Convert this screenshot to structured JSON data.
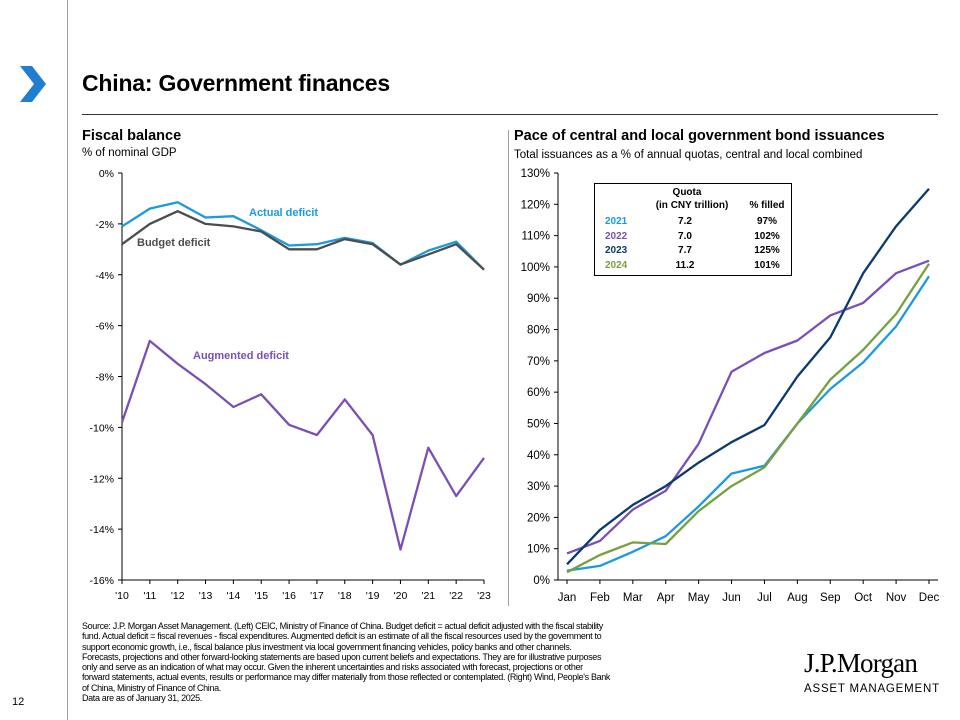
{
  "page": {
    "title": "China: Government finances",
    "page_number": "12",
    "source_lines": [
      "Source: J.P. Morgan Asset Management. (Left) CEIC, Ministry of Finance of China. Budget deficit = actual deficit adjusted with the fiscal stability",
      "fund. Actual deficit = fiscal revenues - fiscal expenditures. Augmented deficit is an estimate of all the fiscal resources used by the government to",
      "support economic growth, i.e., fiscal balance plus investment via local government financing vehicles, policy banks and other channels.",
      "Forecasts, projections and other forward-looking statements are based upon current beliefs and expectations. They are for illustrative purposes",
      "only and serve as an indication of what may occur. Given the inherent uncertainties and risks associated with forecast, projections or other",
      "forward statements, actual events, results or performance may differ materially from those reflected or contemplated. (Right) Wind, People's Bank",
      "of China, Ministry of Finance of China.",
      "Data are as of January 31, 2025."
    ],
    "logo": {
      "main": "J.P.Morgan",
      "sub": "ASSET MANAGEMENT"
    },
    "colors": {
      "accent": "#1f7ecf"
    }
  },
  "chart_data": [
    {
      "type": "line",
      "title": "Fiscal balance",
      "subtitle": "% of nominal GDP",
      "categories": [
        "'10",
        "'11",
        "'12",
        "'13",
        "'14",
        "'15",
        "'16",
        "'17",
        "'18",
        "'19",
        "'20",
        "'21",
        "'22",
        "'23"
      ],
      "ylim": [
        -16,
        0
      ],
      "yticks": [
        0,
        -2,
        -4,
        -6,
        -8,
        -10,
        -12,
        -14,
        -16
      ],
      "ytick_labels": [
        "0%",
        "-2%",
        "-4%",
        "-6%",
        "-8%",
        "-10%",
        "-12%",
        "-14%",
        "-16%"
      ],
      "series": [
        {
          "name": "Actual deficit",
          "color": "#1b9ae0",
          "values": [
            -2.1,
            -1.4,
            -1.15,
            -1.75,
            -1.7,
            -2.25,
            -2.85,
            -2.8,
            -2.55,
            -2.75,
            -3.6,
            -3.05,
            -2.7,
            -3.8
          ]
        },
        {
          "name": "Budget deficit",
          "color": "#4d4d4d",
          "values": [
            -2.8,
            -2.0,
            -1.5,
            -2.0,
            -2.1,
            -2.3,
            -3.0,
            -3.0,
            -2.6,
            -2.8,
            -3.6,
            -3.2,
            -2.8,
            -3.8
          ]
        },
        {
          "name": "Augmented deficit",
          "color": "#7b4fb8",
          "values": [
            -9.8,
            -6.6,
            -7.5,
            -8.3,
            -9.2,
            -8.7,
            -9.9,
            -10.3,
            -8.9,
            -10.3,
            -14.8,
            -10.8,
            -12.7,
            -11.2
          ]
        }
      ]
    },
    {
      "type": "line",
      "title": "Pace of central and local government bond issuances",
      "subtitle": "Total issuances as a % of annual quotas, central and local combined",
      "categories": [
        "Jan",
        "Feb",
        "Mar",
        "Apr",
        "May",
        "Jun",
        "Jul",
        "Aug",
        "Sep",
        "Oct",
        "Nov",
        "Dec"
      ],
      "ylim": [
        0,
        130
      ],
      "yticks": [
        0,
        10,
        20,
        30,
        40,
        50,
        60,
        70,
        80,
        90,
        100,
        110,
        120,
        130
      ],
      "ytick_labels": [
        "0%",
        "10%",
        "20%",
        "30%",
        "40%",
        "50%",
        "60%",
        "70%",
        "80%",
        "90%",
        "100%",
        "110%",
        "120%",
        "130%"
      ],
      "series": [
        {
          "name": "2021",
          "color": "#1b9ae0",
          "values": [
            3,
            4.5,
            9,
            14,
            23.5,
            34,
            36.5,
            50,
            61,
            69.5,
            81,
            97
          ]
        },
        {
          "name": "2022",
          "color": "#7b4fb8",
          "values": [
            8.5,
            12.5,
            22.5,
            28.5,
            43.5,
            66.5,
            72.5,
            76.5,
            84.5,
            88.5,
            98,
            102
          ]
        },
        {
          "name": "2023",
          "color": "#0b3a6e",
          "values": [
            5,
            16,
            24,
            30,
            37.5,
            44,
            49.5,
            65,
            77.5,
            98,
            113,
            125
          ]
        },
        {
          "name": "2024",
          "color": "#77a03e",
          "values": [
            2.5,
            8,
            12,
            11.5,
            22,
            30,
            36,
            50,
            64,
            73.5,
            85,
            101
          ]
        }
      ],
      "quota_table": {
        "headers": {
          "quota_line1": "Quota",
          "quota_line2": "(in CNY trillion)",
          "filled": "% filled"
        },
        "rows": [
          {
            "year": "2021",
            "quota": "7.2",
            "filled": "97%",
            "color": "#1b9ae0"
          },
          {
            "year": "2022",
            "quota": "7.0",
            "filled": "102%",
            "color": "#7b4fb8"
          },
          {
            "year": "2023",
            "quota": "7.7",
            "filled": "125%",
            "color": "#0b3a6e"
          },
          {
            "year": "2024",
            "quota": "11.2",
            "filled": "101%",
            "color": "#77a03e"
          }
        ]
      }
    }
  ]
}
